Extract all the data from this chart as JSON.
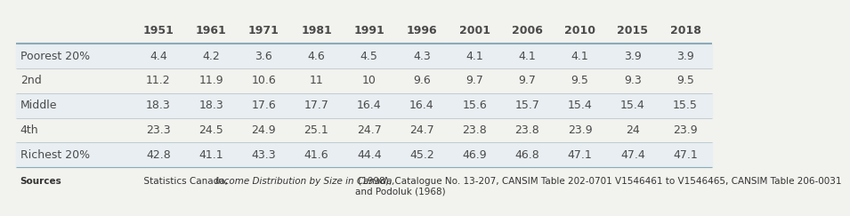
{
  "columns": [
    "",
    "1951",
    "1961",
    "1971",
    "1981",
    "1991",
    "1996",
    "2001",
    "2006",
    "2010",
    "2015",
    "2018"
  ],
  "rows": [
    [
      "Poorest 20%",
      "4.4",
      "4.2",
      "3.6",
      "4.6",
      "4.5",
      "4.3",
      "4.1",
      "4.1",
      "4.1",
      "3.9",
      "3.9"
    ],
    [
      "2nd",
      "11.2",
      "11.9",
      "10.6",
      "11",
      "10",
      "9.6",
      "9.7",
      "9.7",
      "9.5",
      "9.3",
      "9.5"
    ],
    [
      "Middle",
      "18.3",
      "18.3",
      "17.6",
      "17.7",
      "16.4",
      "16.4",
      "15.6",
      "15.7",
      "15.4",
      "15.4",
      "15.5"
    ],
    [
      "4th",
      "23.3",
      "24.5",
      "24.9",
      "25.1",
      "24.7",
      "24.7",
      "23.8",
      "23.8",
      "23.9",
      "24",
      "23.9"
    ],
    [
      "Richest 20%",
      "42.8",
      "41.1",
      "43.3",
      "41.6",
      "44.4",
      "45.2",
      "46.9",
      "46.8",
      "47.1",
      "47.4",
      "47.1"
    ]
  ],
  "sources_bold": "Sources",
  "sources_normal": "  Statistics Canada, ",
  "sources_italic": "Income Distribution by Size in Canada,",
  "sources_rest": " (1998), Catalogue No. 13-207, CANSIM Table 202-0701 V1546461 to V1546465, CANSIM Table 206-0031\nand Podoluk (1968)",
  "bg_color": "#f2f2ee",
  "header_color": "#4a4a4a",
  "row_label_color": "#4a4a4a",
  "data_color": "#4a4a4a",
  "line_color": "#b0bec5",
  "alt_row_color_even": "#e8eef2",
  "alt_row_color_odd": "#f2f2ee",
  "header_line_color": "#8aabba"
}
